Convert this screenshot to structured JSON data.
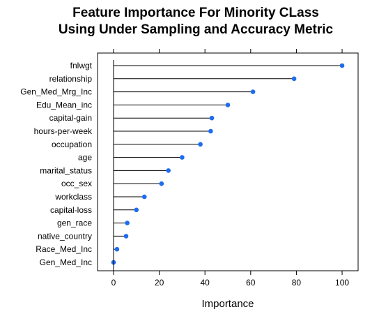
{
  "chart_data": {
    "type": "dotplot",
    "title_lines": [
      "Feature Importance For Minority CLass",
      "Using Under Sampling and Accuracy Metric"
    ],
    "xlabel": "Importance",
    "ylabel": "",
    "xlim": [
      -7,
      107
    ],
    "x_ticks": [
      0,
      20,
      40,
      60,
      80,
      100
    ],
    "x_tick_labels": [
      "0",
      "20",
      "40",
      "60",
      "80",
      "100"
    ],
    "grid": false,
    "point_color": "#1e6cf0",
    "categories": [
      "fnlwgt",
      "relationship",
      "Gen_Med_Mrg_Inc",
      "Edu_Mean_inc",
      "capital-gain",
      "hours-per-week",
      "occupation",
      "age",
      "marital_status",
      "occ_sex",
      "workclass",
      "capital-loss",
      "gen_race",
      "native_country",
      "Race_Med_Inc",
      "Gen_Med_Inc"
    ],
    "values": [
      100,
      79,
      61,
      50,
      43,
      42.5,
      38,
      30,
      24,
      21,
      13.5,
      10,
      6,
      5.5,
      1.5,
      0
    ]
  }
}
